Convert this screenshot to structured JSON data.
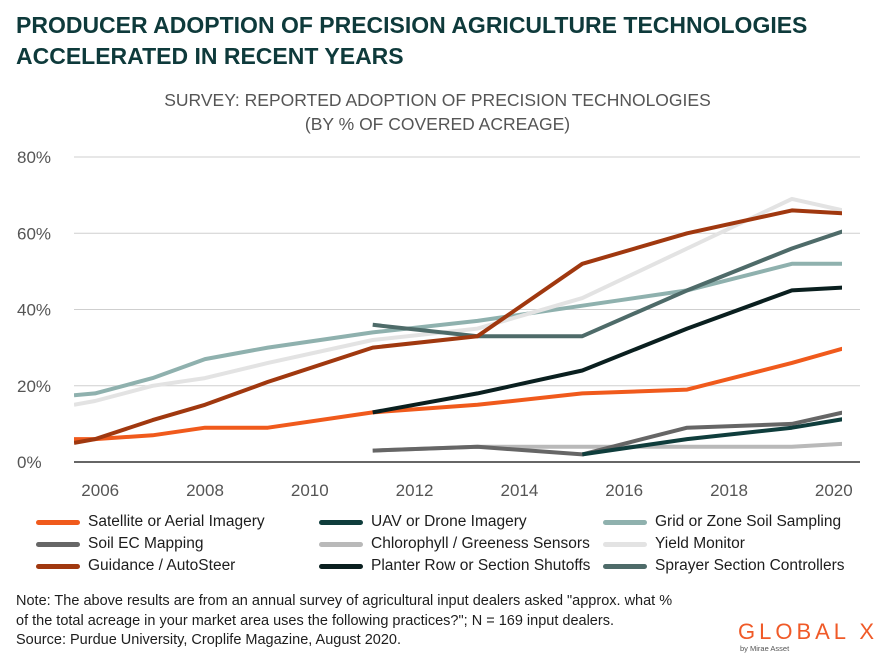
{
  "headline": {
    "line1": "PRODUCER ADOPTION OF PRECISION AGRICULTURE TECHNOLOGIES",
    "line2": "ACCELERATED IN RECENT YEARS"
  },
  "chart_data": {
    "type": "line",
    "title": "SURVEY: REPORTED ADOPTION OF PRECISION TECHNOLOGIES",
    "subtitle": "(BY % OF COVERED ACREAGE)",
    "xlabel": "",
    "ylabel": "",
    "xlim": [
      2005.5,
      2020.5
    ],
    "ylim": [
      0,
      80
    ],
    "x_ticks": [
      2006,
      2008,
      2010,
      2012,
      2014,
      2016,
      2018,
      2020
    ],
    "x_tick_labels": [
      "2006",
      "2008",
      "2010",
      "2012",
      "2014",
      "2016",
      "2018",
      "2020"
    ],
    "y_ticks": [
      0,
      20,
      40,
      60,
      80
    ],
    "y_tick_labels": [
      "0%",
      "20%",
      "40%",
      "60%",
      "80%"
    ],
    "grid": "horizontal",
    "series": [
      {
        "name": "Grid or Zone Soil Sampling",
        "color": "#8fb1ae",
        "x": [
          2005.5,
          2005.9,
          2007,
          2008,
          2009.2,
          2011.2,
          2013.2,
          2015.2,
          2017.2,
          2019.2,
          2020.5
        ],
        "y": [
          17.5,
          18,
          22,
          27,
          30,
          34,
          37,
          41,
          45,
          52,
          52
        ]
      },
      {
        "name": "Yield Monitor",
        "color": "#e3e3e3",
        "x": [
          2005.5,
          2005.9,
          2007,
          2008,
          2009.2,
          2011.2,
          2013.2,
          2015.2,
          2017.2,
          2019.2,
          2020.5
        ],
        "y": [
          15,
          16,
          20,
          22,
          26,
          32,
          35,
          43,
          56,
          69,
          65
        ]
      },
      {
        "name": "Sprayer Section Controllers",
        "color": "#4e6b69",
        "x": [
          2011.2,
          2013.2,
          2015.2,
          2017.2,
          2019.2,
          2020.5
        ],
        "y": [
          36,
          33,
          33,
          45,
          56,
          62
        ]
      },
      {
        "name": "Chlorophyll / Greeness Sensors",
        "color": "#b9b9b9",
        "x": [
          2011.2,
          2013.2,
          2015.2,
          2017.2,
          2019.2,
          2020.5
        ],
        "y": [
          3,
          4,
          4,
          4,
          4,
          5
        ]
      },
      {
        "name": "Soil EC Mapping",
        "color": "#666666",
        "x": [
          2011.2,
          2013.2,
          2015.2,
          2017.2,
          2019.2,
          2020.5
        ],
        "y": [
          3,
          4,
          2,
          9,
          10,
          14
        ]
      },
      {
        "name": "UAV or Drone Imagery",
        "color": "#0f3d3c",
        "x": [
          2015.2,
          2017.2,
          2019.2,
          2020.5
        ],
        "y": [
          2,
          6,
          9,
          12
        ]
      },
      {
        "name": "Satellite or Aerial Imagery",
        "color": "#f05a1c",
        "x": [
          2005.5,
          2005.9,
          2007,
          2008,
          2009.2,
          2011.2,
          2013.2,
          2015.2,
          2017.2,
          2019.2,
          2020.5
        ],
        "y": [
          6,
          6,
          7,
          9,
          9,
          13,
          15,
          18,
          19,
          26,
          31
        ]
      },
      {
        "name": "Planter Row or Section Shutoffs",
        "color": "#0a1f1f",
        "x": [
          2011.2,
          2013.2,
          2015.2,
          2017.2,
          2019.2,
          2020.5
        ],
        "y": [
          13,
          18,
          24,
          35,
          45,
          46
        ]
      },
      {
        "name": "Guidance / AutoSteer",
        "color": "#a0380f",
        "x": [
          2005.5,
          2005.9,
          2007,
          2008,
          2009.2,
          2011.2,
          2013.2,
          2015.2,
          2017.2,
          2019.2,
          2020.5
        ],
        "y": [
          5,
          6,
          11,
          15,
          21,
          30,
          33,
          52,
          60,
          66,
          65
        ]
      }
    ],
    "legend_order": [
      "Satellite or Aerial Imagery",
      "UAV or Drone Imagery",
      "Grid or Zone Soil Sampling",
      "Soil EC Mapping",
      "Chlorophyll / Greeness Sensors",
      "Yield Monitor",
      "Guidance / AutoSteer",
      "Planter Row or Section Shutoffs",
      "Sprayer Section Controllers"
    ],
    "legend_position": "bottom"
  },
  "note": {
    "line1": "Note: The above results are from an annual survey of agricultural input dealers asked \"approx. what %",
    "line2": "of the total acreage in your market area uses the following practices?\"; N = 169 input dealers.",
    "source": "Source: Purdue University, Croplife Magazine, August 2020."
  },
  "logo": {
    "name": "GLOBAL X",
    "tagline": "by Mirae Asset",
    "color": "#f05a28"
  }
}
